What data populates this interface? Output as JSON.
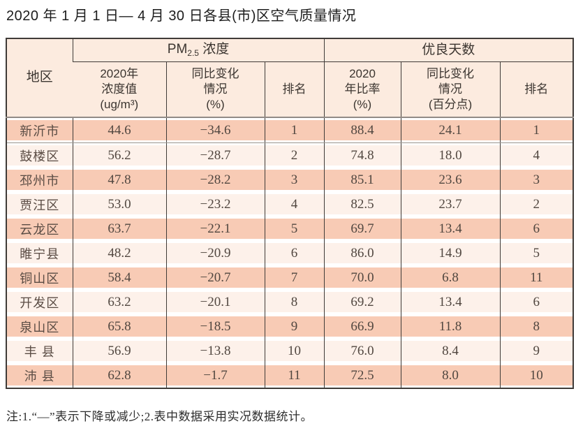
{
  "title": "2020 年 1 月 1 日— 4 月 30 日各县(市)区空气质量情况",
  "note": "注:1.“—”表示下降或减少;2.表中数据采用实况数据统计。",
  "colors": {
    "band_salmon": "#f8cbb5",
    "band_light": "#fdf1ea",
    "header_bg": "#fcebdf",
    "border": "#3f3b38",
    "text": "#514740"
  },
  "table": {
    "header": {
      "region": "地区",
      "pm_prefix": "PM",
      "pm_sub": "2.5",
      "pm_suffix": " 浓度",
      "good_group": "优良天数",
      "col_pm_value": "2020年\n浓度值\n(ug/m³)",
      "col_pm_change": "同比变化\n情况\n(%)",
      "col_pm_rank": "排名",
      "col_good_ratio": "2020\n年比率\n(%)",
      "col_good_change": "同比变化\n情况\n(百分点)",
      "col_good_rank": "排名"
    },
    "rows": [
      {
        "region": "新沂市",
        "pm_value": "44.6",
        "pm_change": "−34.6",
        "pm_rank": "1",
        "good_ratio": "88.4",
        "good_change": "24.1",
        "good_rank": "1"
      },
      {
        "region": "鼓楼区",
        "pm_value": "56.2",
        "pm_change": "−28.7",
        "pm_rank": "2",
        "good_ratio": "74.8",
        "good_change": "18.0",
        "good_rank": "4"
      },
      {
        "region": "邳州市",
        "pm_value": "47.8",
        "pm_change": "−28.2",
        "pm_rank": "3",
        "good_ratio": "85.1",
        "good_change": "23.6",
        "good_rank": "3"
      },
      {
        "region": "贾汪区",
        "pm_value": "53.0",
        "pm_change": "−23.2",
        "pm_rank": "4",
        "good_ratio": "82.5",
        "good_change": "23.7",
        "good_rank": "2"
      },
      {
        "region": "云龙区",
        "pm_value": "63.7",
        "pm_change": "−22.1",
        "pm_rank": "5",
        "good_ratio": "69.7",
        "good_change": "13.4",
        "good_rank": "6"
      },
      {
        "region": "睢宁县",
        "pm_value": "48.2",
        "pm_change": "−20.9",
        "pm_rank": "6",
        "good_ratio": "86.0",
        "good_change": "14.9",
        "good_rank": "5"
      },
      {
        "region": "铜山区",
        "pm_value": "58.4",
        "pm_change": "−20.7",
        "pm_rank": "7",
        "good_ratio": "70.0",
        "good_change": "6.8",
        "good_rank": "11"
      },
      {
        "region": "开发区",
        "pm_value": "63.2",
        "pm_change": "−20.1",
        "pm_rank": "8",
        "good_ratio": "69.2",
        "good_change": "13.4",
        "good_rank": "6"
      },
      {
        "region": "泉山区",
        "pm_value": "65.8",
        "pm_change": "−18.5",
        "pm_rank": "9",
        "good_ratio": "66.9",
        "good_change": "11.8",
        "good_rank": "8"
      },
      {
        "region": "丰 县",
        "pm_value": "56.9",
        "pm_change": "−13.8",
        "pm_rank": "10",
        "good_ratio": "76.0",
        "good_change": "8.4",
        "good_rank": "9"
      },
      {
        "region": "沛 县",
        "pm_value": "62.8",
        "pm_change": "−1.7",
        "pm_rank": "11",
        "good_ratio": "72.5",
        "good_change": "8.0",
        "good_rank": "10"
      }
    ]
  }
}
